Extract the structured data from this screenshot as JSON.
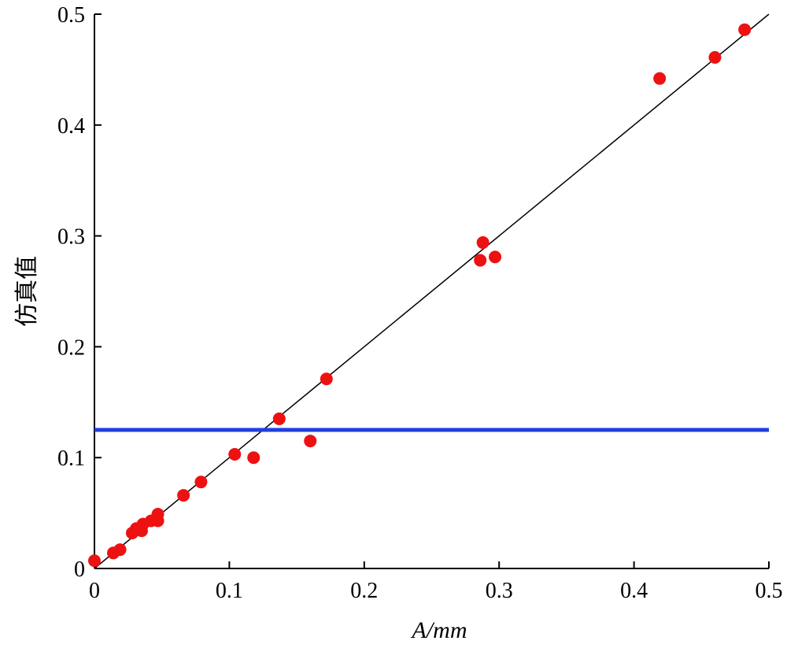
{
  "chart_data": {
    "type": "scatter",
    "xlabel_italic": "A",
    "xlabel_unit": "/mm",
    "ylabel": "仿真值",
    "xlim": [
      0,
      0.5
    ],
    "ylim": [
      0,
      0.5
    ],
    "xticks": [
      "0",
      "0.1",
      "0.2",
      "0.3",
      "0.4",
      "0.5"
    ],
    "yticks": [
      "0",
      "0.1",
      "0.2",
      "0.3",
      "0.4",
      "0.5"
    ],
    "grid": false,
    "points": [
      {
        "x": 0.0,
        "y": 0.007
      },
      {
        "x": 0.014,
        "y": 0.014
      },
      {
        "x": 0.019,
        "y": 0.017
      },
      {
        "x": 0.028,
        "y": 0.032
      },
      {
        "x": 0.031,
        "y": 0.036
      },
      {
        "x": 0.035,
        "y": 0.034
      },
      {
        "x": 0.036,
        "y": 0.04
      },
      {
        "x": 0.042,
        "y": 0.043
      },
      {
        "x": 0.047,
        "y": 0.043
      },
      {
        "x": 0.047,
        "y": 0.049
      },
      {
        "x": 0.066,
        "y": 0.066
      },
      {
        "x": 0.079,
        "y": 0.078
      },
      {
        "x": 0.104,
        "y": 0.103
      },
      {
        "x": 0.118,
        "y": 0.1
      },
      {
        "x": 0.137,
        "y": 0.135
      },
      {
        "x": 0.16,
        "y": 0.115
      },
      {
        "x": 0.172,
        "y": 0.171
      },
      {
        "x": 0.286,
        "y": 0.278
      },
      {
        "x": 0.288,
        "y": 0.294
      },
      {
        "x": 0.297,
        "y": 0.281
      },
      {
        "x": 0.419,
        "y": 0.442
      },
      {
        "x": 0.46,
        "y": 0.461
      },
      {
        "x": 0.482,
        "y": 0.486
      }
    ],
    "reference_line": {
      "x": [
        0,
        0.5
      ],
      "y": [
        0,
        0.5
      ]
    },
    "threshold_y": 0.125,
    "colors": {
      "points": "#ee1111",
      "reference_line": "#000000",
      "threshold": "#1f3fe0",
      "axes": "#000000"
    }
  }
}
